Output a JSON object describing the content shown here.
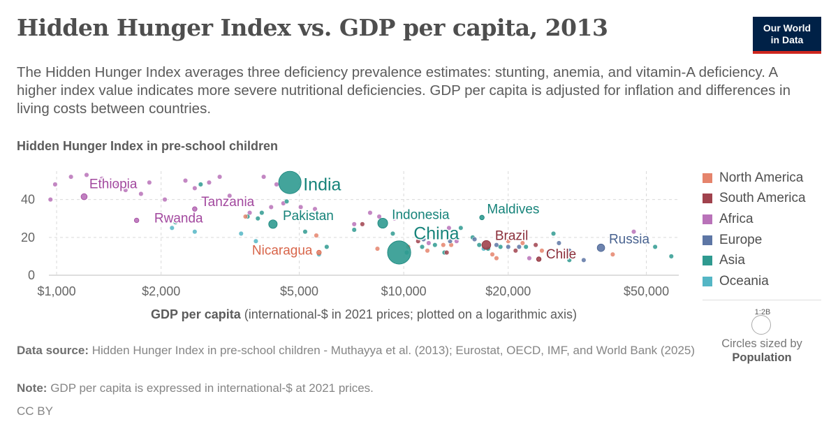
{
  "header": {
    "title": "Hidden Hunger Index vs. GDP per capita, 2013",
    "subtitle": "The Hidden Hunger Index averages three deficiency prevalence estimates: stunting, anemia, and vitamin-A deficiency. A higher index value indicates more severe nutritional deficiencies. GDP per capita is adjusted for inflation and differences in living costs between countries.",
    "logo_line1": "Our World",
    "logo_line2": "in Data"
  },
  "colors": {
    "North America": "#e5846c",
    "South America": "#a0424d",
    "Africa": "#b972b9",
    "Europe": "#5d76a5",
    "Asia": "#2f9a90",
    "Oceania": "#54b6c5",
    "grid": "#d9d9d9",
    "logo_bg": "#002147",
    "logo_accent": "#ce261e"
  },
  "chart_data": {
    "type": "scatter",
    "title": "Hidden Hunger Index vs. GDP per capita, 2013",
    "ylabel": "Hidden Hunger Index in pre-school children",
    "xlabel_bold": "GDP per capita",
    "xlabel_rest": "(international-$ in 2021 prices; plotted on a logarithmic axis)",
    "x_scale": "log",
    "xlim": [
      950,
      62000
    ],
    "ylim": [
      0,
      55
    ],
    "x_ticks": [
      {
        "value": 1000,
        "label": "$1,000"
      },
      {
        "value": 2000,
        "label": "$2,000"
      },
      {
        "value": 5000,
        "label": "$5,000"
      },
      {
        "value": 10000,
        "label": "$10,000"
      },
      {
        "value": 20000,
        "label": "$20,000"
      },
      {
        "value": 50000,
        "label": "$50,000"
      }
    ],
    "y_ticks": [
      0,
      20,
      40
    ],
    "grid": true,
    "legend": {
      "placement": "right",
      "entries": [
        "North America",
        "South America",
        "Africa",
        "Europe",
        "Asia",
        "Oceania"
      ]
    },
    "size_legend": {
      "reference": "1:2B",
      "note": "Circles sized by",
      "variable": "Population"
    },
    "labeled_points": [
      {
        "country": "Ethiopia",
        "region": "Africa",
        "x": 1200,
        "y": 41.5,
        "population_m": 95
      },
      {
        "country": "Tanzania",
        "region": "Africa",
        "x": 2500,
        "y": 35,
        "population_m": 50
      },
      {
        "country": "Rwanda",
        "region": "Africa",
        "x": 1700,
        "y": 29,
        "population_m": 11
      },
      {
        "country": "India",
        "region": "Asia",
        "x": 4700,
        "y": 49,
        "population_m": 1280
      },
      {
        "country": "Pakistan",
        "region": "Asia",
        "x": 4200,
        "y": 27,
        "population_m": 185
      },
      {
        "country": "Indonesia",
        "region": "Asia",
        "x": 8700,
        "y": 27.5,
        "population_m": 250
      },
      {
        "country": "China",
        "region": "Asia",
        "x": 9700,
        "y": 12,
        "population_m": 1370
      },
      {
        "country": "Maldives",
        "region": "Asia",
        "x": 16800,
        "y": 30.5,
        "population_m": 0.4
      },
      {
        "country": "Nicaragua",
        "region": "North America",
        "x": 5700,
        "y": 12,
        "population_m": 6
      },
      {
        "country": "Brazil",
        "region": "South America",
        "x": 17300,
        "y": 16,
        "population_m": 200
      },
      {
        "country": "Chile",
        "region": "South America",
        "x": 24500,
        "y": 8.5,
        "population_m": 18
      },
      {
        "country": "Russia",
        "region": "Europe",
        "x": 37000,
        "y": 14.5,
        "population_m": 143
      }
    ],
    "other_points": [
      {
        "region": "Africa",
        "x": 960,
        "y": 40
      },
      {
        "region": "Africa",
        "x": 990,
        "y": 48
      },
      {
        "region": "Africa",
        "x": 1100,
        "y": 52
      },
      {
        "region": "Africa",
        "x": 1220,
        "y": 53
      },
      {
        "region": "Africa",
        "x": 1350,
        "y": 51
      },
      {
        "region": "Africa",
        "x": 1500,
        "y": 48
      },
      {
        "region": "Africa",
        "x": 1420,
        "y": 47
      },
      {
        "region": "Africa",
        "x": 1580,
        "y": 45
      },
      {
        "region": "Africa",
        "x": 1750,
        "y": 43
      },
      {
        "region": "Africa",
        "x": 1850,
        "y": 49
      },
      {
        "region": "Africa",
        "x": 2050,
        "y": 40
      },
      {
        "region": "Africa",
        "x": 2350,
        "y": 50
      },
      {
        "region": "Africa",
        "x": 2500,
        "y": 46
      },
      {
        "region": "Africa",
        "x": 2750,
        "y": 49
      },
      {
        "region": "Africa",
        "x": 2950,
        "y": 52
      },
      {
        "region": "Africa",
        "x": 3150,
        "y": 42
      },
      {
        "region": "Africa",
        "x": 3600,
        "y": 33
      },
      {
        "region": "Africa",
        "x": 3950,
        "y": 52
      },
      {
        "region": "Africa",
        "x": 4150,
        "y": 36
      },
      {
        "region": "Africa",
        "x": 4300,
        "y": 48
      },
      {
        "region": "Africa",
        "x": 4500,
        "y": 38
      },
      {
        "region": "Africa",
        "x": 5050,
        "y": 36
      },
      {
        "region": "Africa",
        "x": 5550,
        "y": 35
      },
      {
        "region": "Africa",
        "x": 7200,
        "y": 27
      },
      {
        "region": "Africa",
        "x": 8000,
        "y": 33
      },
      {
        "region": "Africa",
        "x": 8500,
        "y": 31
      },
      {
        "region": "Africa",
        "x": 9400,
        "y": 30
      },
      {
        "region": "Africa",
        "x": 11800,
        "y": 17
      },
      {
        "region": "Africa",
        "x": 13500,
        "y": 25
      },
      {
        "region": "Africa",
        "x": 14200,
        "y": 18
      },
      {
        "region": "Africa",
        "x": 23000,
        "y": 9
      },
      {
        "region": "Africa",
        "x": 46000,
        "y": 23
      },
      {
        "region": "Asia",
        "x": 2200,
        "y": 28
      },
      {
        "region": "Asia",
        "x": 2600,
        "y": 48
      },
      {
        "region": "Asia",
        "x": 3550,
        "y": 31
      },
      {
        "region": "Asia",
        "x": 3800,
        "y": 30
      },
      {
        "region": "Asia",
        "x": 3900,
        "y": 33
      },
      {
        "region": "Asia",
        "x": 4600,
        "y": 39
      },
      {
        "region": "Asia",
        "x": 5200,
        "y": 23
      },
      {
        "region": "Asia",
        "x": 6000,
        "y": 15
      },
      {
        "region": "Asia",
        "x": 7200,
        "y": 24
      },
      {
        "region": "Asia",
        "x": 9300,
        "y": 22
      },
      {
        "region": "Asia",
        "x": 10200,
        "y": 12
      },
      {
        "region": "Asia",
        "x": 11300,
        "y": 15
      },
      {
        "region": "Asia",
        "x": 12300,
        "y": 16
      },
      {
        "region": "Asia",
        "x": 13100,
        "y": 12
      },
      {
        "region": "Asia",
        "x": 14600,
        "y": 25
      },
      {
        "region": "Asia",
        "x": 15800,
        "y": 20
      },
      {
        "region": "Asia",
        "x": 16500,
        "y": 16
      },
      {
        "region": "Asia",
        "x": 17500,
        "y": 14
      },
      {
        "region": "Asia",
        "x": 19000,
        "y": 15
      },
      {
        "region": "Asia",
        "x": 22500,
        "y": 15
      },
      {
        "region": "Asia",
        "x": 27000,
        "y": 22
      },
      {
        "region": "Asia",
        "x": 30000,
        "y": 8
      },
      {
        "region": "Asia",
        "x": 53000,
        "y": 15
      },
      {
        "region": "Asia",
        "x": 59000,
        "y": 10
      },
      {
        "region": "Oceania",
        "x": 2150,
        "y": 25
      },
      {
        "region": "Oceania",
        "x": 2500,
        "y": 23
      },
      {
        "region": "Oceania",
        "x": 3400,
        "y": 22
      },
      {
        "region": "Oceania",
        "x": 3750,
        "y": 18
      },
      {
        "region": "Oceania",
        "x": 5700,
        "y": 11
      },
      {
        "region": "Oceania",
        "x": 17000,
        "y": 14
      },
      {
        "region": "North America",
        "x": 3500,
        "y": 31
      },
      {
        "region": "North America",
        "x": 5600,
        "y": 21
      },
      {
        "region": "North America",
        "x": 8400,
        "y": 14
      },
      {
        "region": "North America",
        "x": 10300,
        "y": 15
      },
      {
        "region": "North America",
        "x": 11700,
        "y": 13
      },
      {
        "region": "North America",
        "x": 13000,
        "y": 16
      },
      {
        "region": "North America",
        "x": 13700,
        "y": 16
      },
      {
        "region": "North America",
        "x": 18000,
        "y": 11
      },
      {
        "region": "North America",
        "x": 18500,
        "y": 9
      },
      {
        "region": "North America",
        "x": 20000,
        "y": 18
      },
      {
        "region": "North America",
        "x": 22000,
        "y": 17
      },
      {
        "region": "North America",
        "x": 25000,
        "y": 13
      },
      {
        "region": "North America",
        "x": 40000,
        "y": 11
      },
      {
        "region": "South America",
        "x": 7600,
        "y": 27
      },
      {
        "region": "South America",
        "x": 11000,
        "y": 18
      },
      {
        "region": "South America",
        "x": 13300,
        "y": 12
      },
      {
        "region": "South America",
        "x": 21000,
        "y": 13
      },
      {
        "region": "South America",
        "x": 24000,
        "y": 16
      },
      {
        "region": "Europe",
        "x": 11400,
        "y": 19
      },
      {
        "region": "Europe",
        "x": 13600,
        "y": 18
      },
      {
        "region": "Europe",
        "x": 16000,
        "y": 19
      },
      {
        "region": "Europe",
        "x": 18500,
        "y": 16
      },
      {
        "region": "Europe",
        "x": 20000,
        "y": 15
      },
      {
        "region": "Europe",
        "x": 21500,
        "y": 15
      },
      {
        "region": "Europe",
        "x": 26000,
        "y": 12
      },
      {
        "region": "Europe",
        "x": 28000,
        "y": 17
      },
      {
        "region": "Europe",
        "x": 30000,
        "y": 13
      },
      {
        "region": "Europe",
        "x": 33000,
        "y": 8
      }
    ]
  },
  "footer": {
    "source_label": "Data source:",
    "source_text": "Hidden Hunger Index in pre-school children - Muthayya et al. (2013); Eurostat, OECD, IMF, and World Bank (2025)",
    "note_label": "Note:",
    "note_text": "GDP per capita is expressed in international-$ at 2021 prices.",
    "license": "CC BY"
  }
}
